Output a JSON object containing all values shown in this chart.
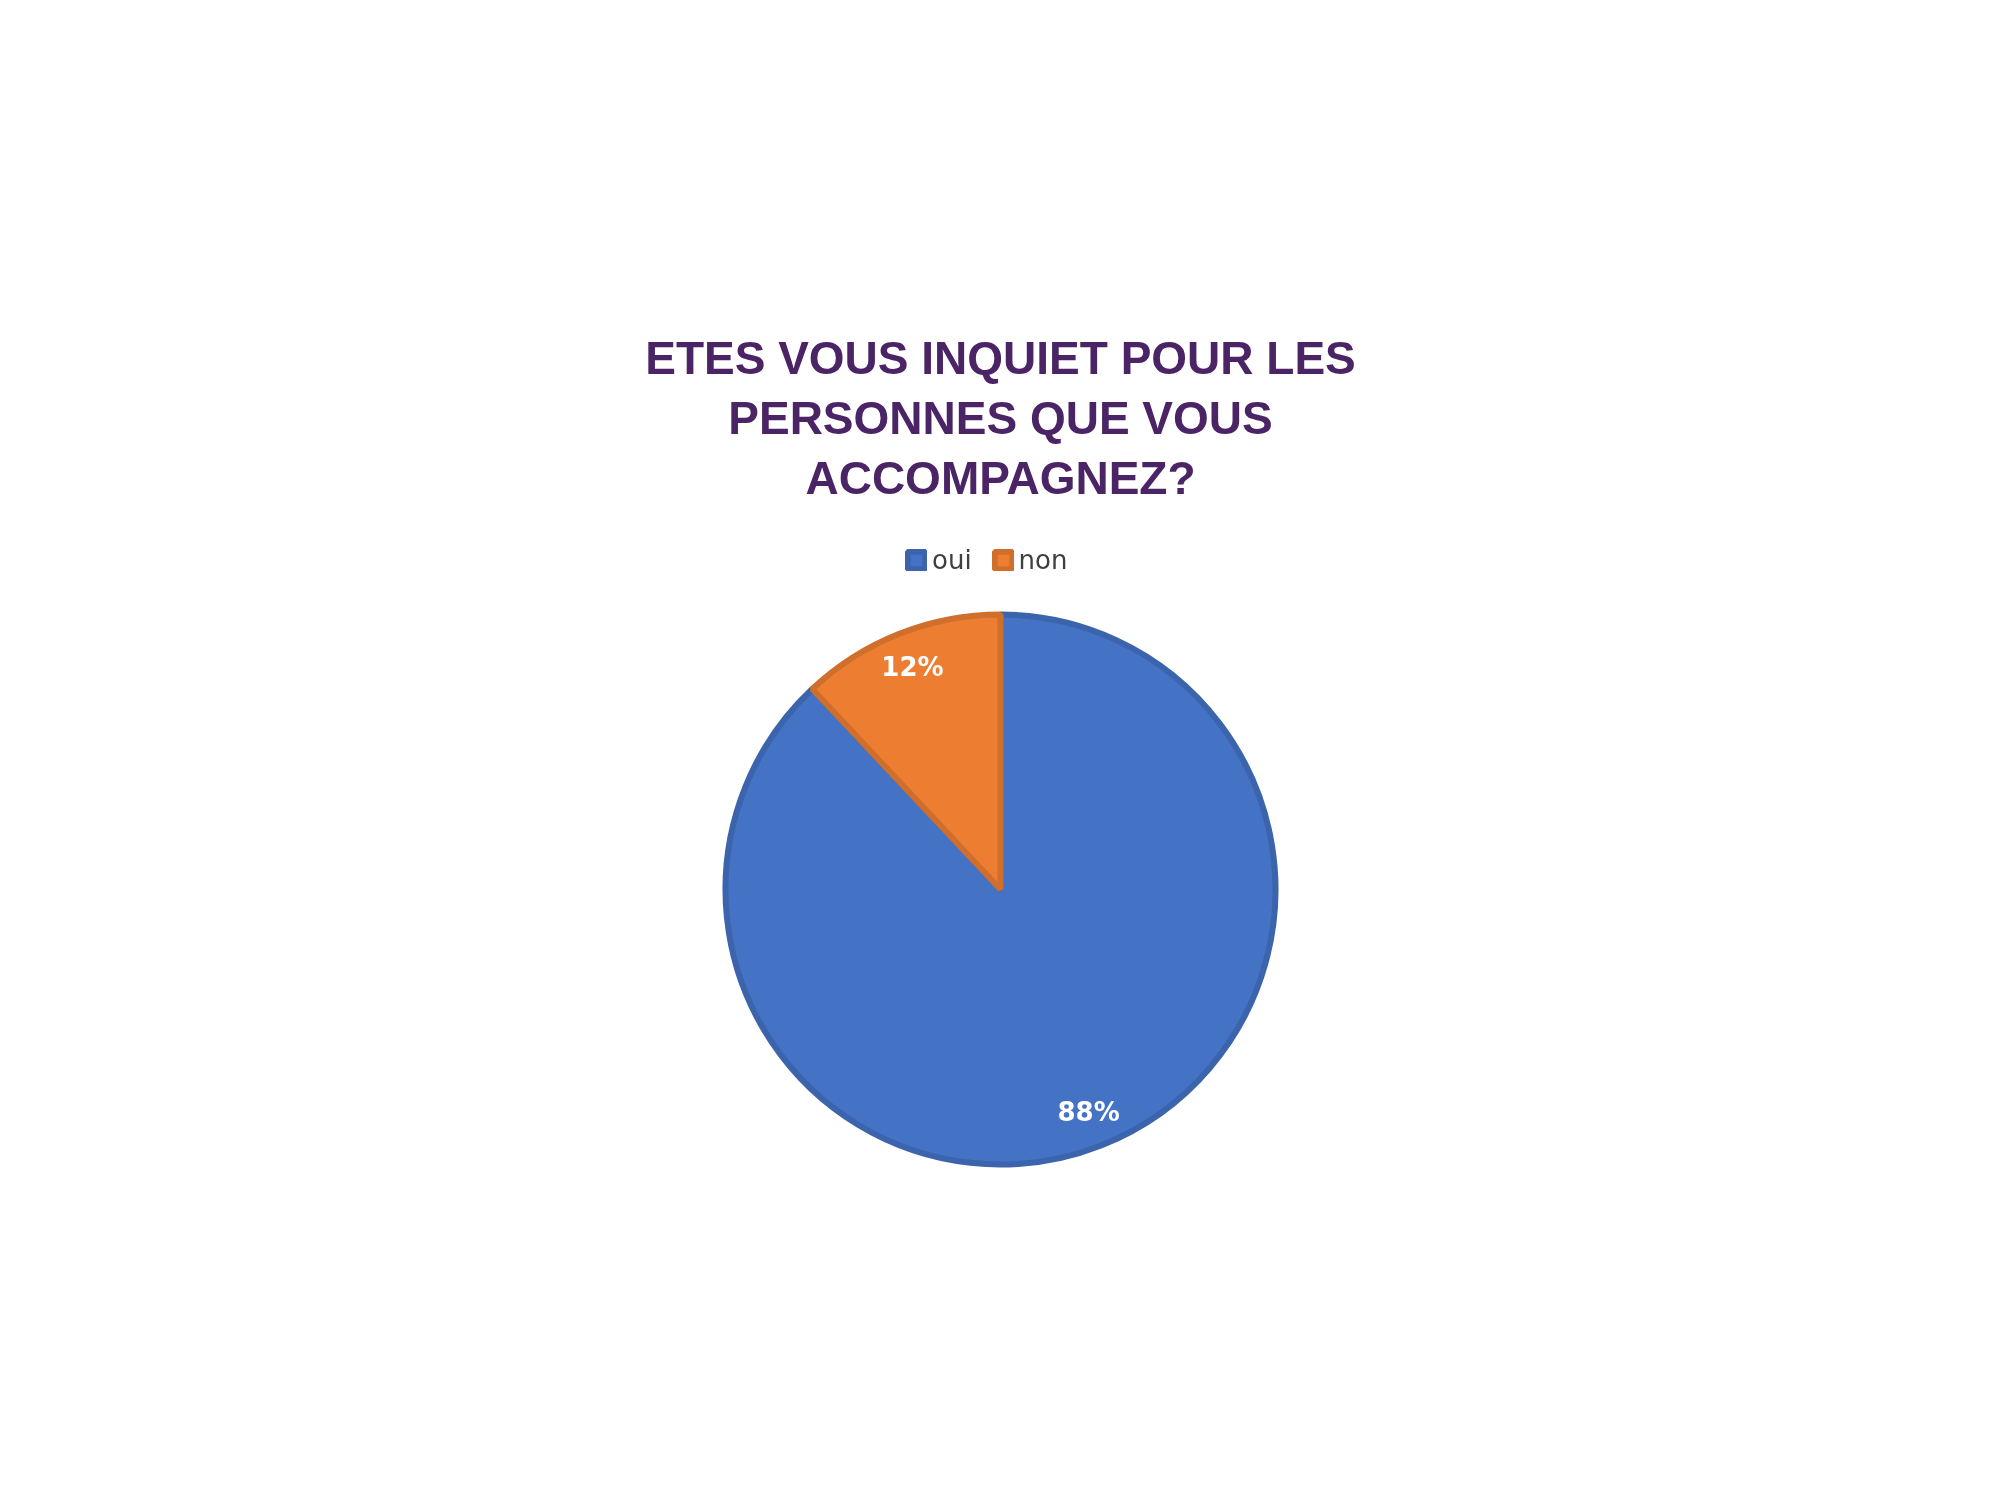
{
  "chart_data": {
    "type": "pie",
    "title": "ETES VOUS INQUIET POUR LES PERSONNES QUE VOUS ACCOMPAGNEZ?",
    "categories": [
      "oui",
      "non"
    ],
    "values": [
      88,
      12
    ],
    "colors": [
      "#4472c4",
      "#ed7d31"
    ],
    "value_labels": [
      "88%",
      "12%"
    ],
    "legend": "top"
  }
}
